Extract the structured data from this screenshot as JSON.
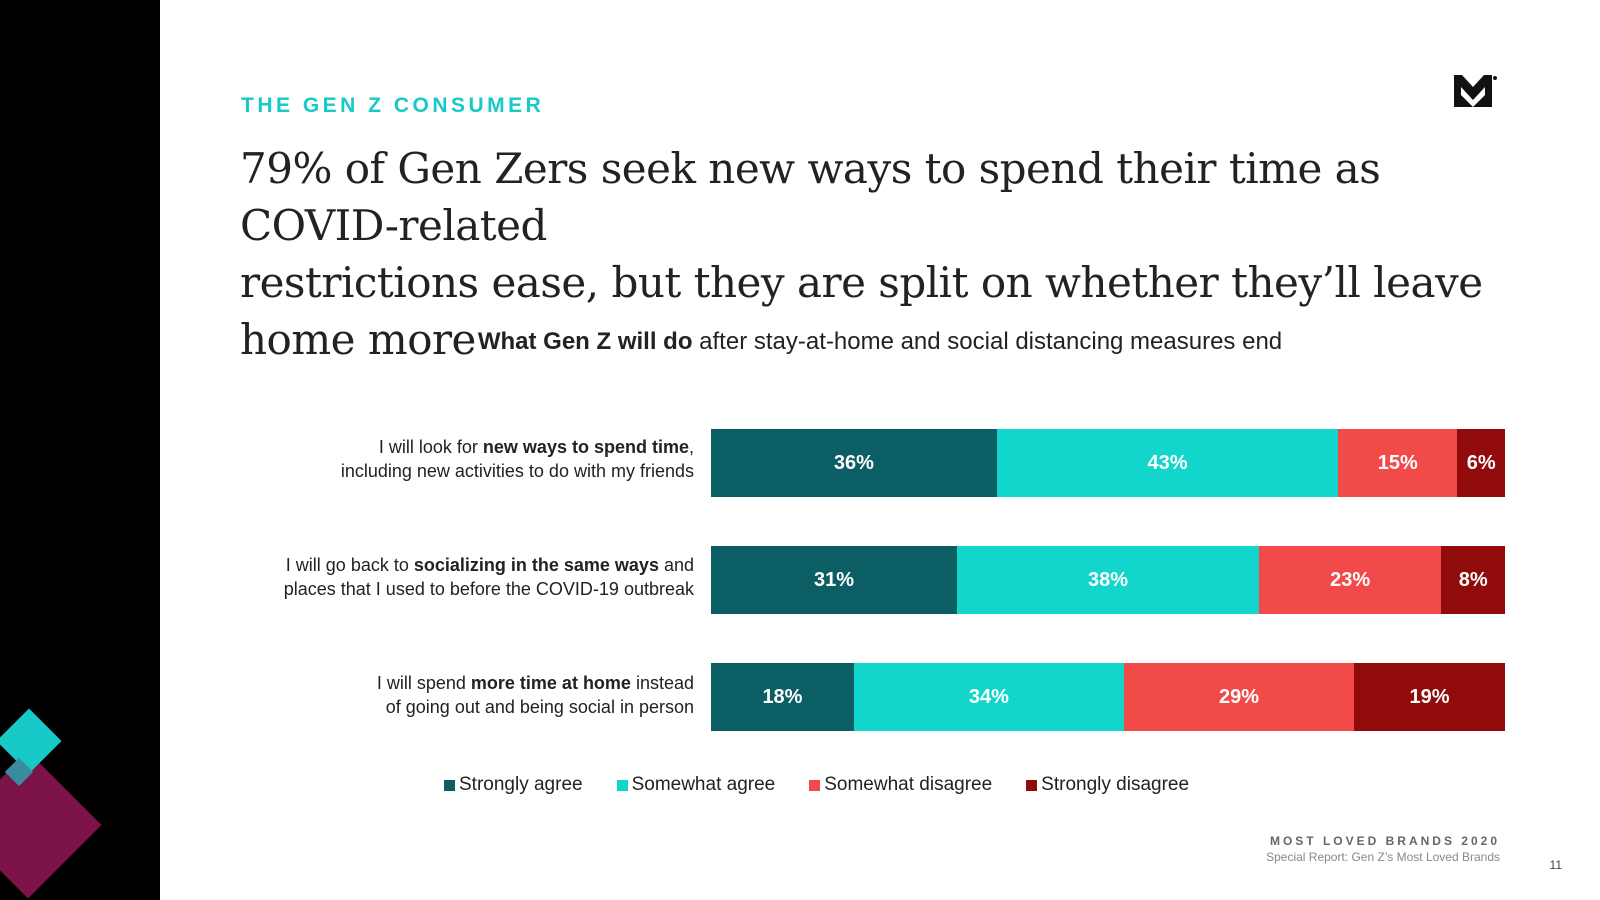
{
  "section_label": "THE GEN Z CONSUMER",
  "headline": {
    "line1": "79% of Gen Zers seek new ways to spend their time as COVID-related",
    "line2": "restrictions ease, but they are split on whether they’ll leave home more"
  },
  "chart_data": {
    "type": "bar",
    "orientation": "horizontal-stacked-100",
    "title_bold": "What Gen Z will do",
    "title_rest": " after stay-at-home and social distancing measures end",
    "categories": [
      {
        "pre": "I will look for ",
        "bold": "new ways to spend time",
        "post": ",",
        "line2": "including new activities to do with my friends"
      },
      {
        "pre": "I will go back to ",
        "bold": "socializing in the same ways",
        "post": " and",
        "line2": "places that I used to before the COVID-19 outbreak"
      },
      {
        "pre": "I will spend ",
        "bold": "more time at home",
        "post": " instead",
        "line2": "of going out and being social in person"
      }
    ],
    "series": [
      {
        "name": "Strongly agree",
        "color": "#0b5e63",
        "values": [
          36,
          31,
          18
        ]
      },
      {
        "name": "Somewhat agree",
        "color": "#12d6cc",
        "values": [
          43,
          38,
          34
        ]
      },
      {
        "name": "Somewhat disagree",
        "color": "#f24949",
        "values": [
          15,
          23,
          29
        ]
      },
      {
        "name": "Strongly disagree",
        "color": "#920b0b",
        "values": [
          6,
          8,
          19
        ]
      }
    ],
    "value_suffix": "%",
    "xlim": [
      0,
      100
    ],
    "legend_position": "bottom"
  },
  "footer": {
    "brand": "MOST LOVED BRANDS 2020",
    "subtitle": "Special Report: Gen Z’s Most Loved Brands",
    "page_number": "11"
  },
  "logo_name": "morning-consult-logo"
}
